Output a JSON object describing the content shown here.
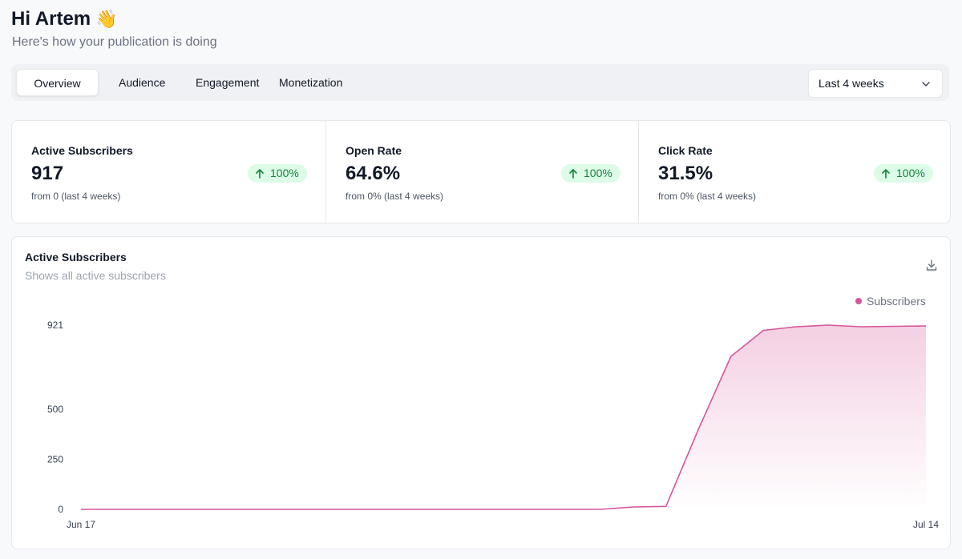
{
  "header": {
    "greeting": "Hi Artem",
    "wave_emoji": "👋",
    "subtitle": "Here's how your publication is doing"
  },
  "tabs": [
    {
      "label": "Overview",
      "active": true
    },
    {
      "label": "Audience",
      "active": false
    },
    {
      "label": "Engagement",
      "active": false
    },
    {
      "label": "Monetization",
      "active": false
    }
  ],
  "period_select": {
    "value": "Last 4 weeks",
    "icon": "chevron-down-icon"
  },
  "stats": [
    {
      "label": "Active Subscribers",
      "value": "917",
      "change": "100%",
      "from": "from 0 (last 4 weeks)"
    },
    {
      "label": "Open Rate",
      "value": "64.6%",
      "change": "100%",
      "from": "from 0% (last 4 weeks)"
    },
    {
      "label": "Click Rate",
      "value": "31.5%",
      "change": "100%",
      "from": "from 0% (last 4 weeks)"
    }
  ],
  "colors": {
    "accent": "#d6559a",
    "badge_bg": "#dcfce7",
    "badge_text": "#15803d"
  },
  "chart_card": {
    "title": "Active Subscribers",
    "subtitle": "Shows all active subscribers",
    "download_icon": "download-icon"
  },
  "chart_data": {
    "type": "area",
    "title": "Active Subscribers",
    "subtitle": "Shows all active subscribers",
    "legend": "top-right",
    "series": [
      {
        "name": "Subscribers",
        "color": "#d6559a",
        "values": [
          0,
          0,
          0,
          0,
          0,
          0,
          0,
          0,
          0,
          0,
          0,
          0,
          0,
          0,
          0,
          0,
          0,
          12,
          15,
          400,
          765,
          895,
          913,
          921,
          913,
          915,
          917
        ]
      }
    ],
    "x_tick_labels": [
      "Jun 17",
      "Jul 14"
    ],
    "y_tick_labels": [
      "0",
      "250",
      "500",
      "921"
    ],
    "y_ticks": [
      0,
      250,
      500,
      921
    ],
    "ylim": [
      0,
      921
    ],
    "grid": false
  }
}
